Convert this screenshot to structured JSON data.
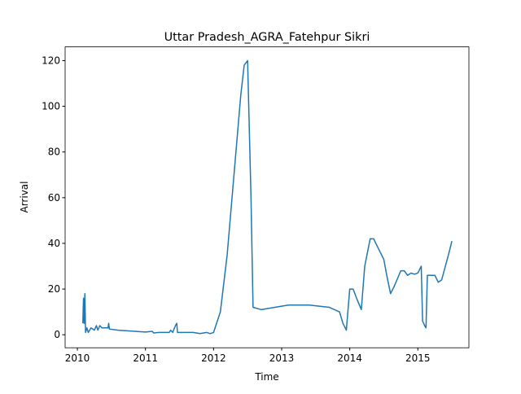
{
  "chart_data": {
    "type": "line",
    "title": "Uttar Pradesh_AGRA_Fatehpur Sikri",
    "x_label": "Time",
    "y_label": "Arrival",
    "x": [
      2010.08,
      2010.09,
      2010.1,
      2010.11,
      2010.12,
      2010.14,
      2010.16,
      2010.2,
      2010.25,
      2010.28,
      2010.3,
      2010.33,
      2010.36,
      2010.45,
      2010.46,
      2010.47,
      2010.6,
      2011.0,
      2011.1,
      2011.12,
      2011.2,
      2011.35,
      2011.37,
      2011.4,
      2011.44,
      2011.46,
      2011.47,
      2011.6,
      2011.7,
      2011.8,
      2011.9,
      2011.95,
      2012.0,
      2012.1,
      2012.2,
      2012.3,
      2012.4,
      2012.45,
      2012.5,
      2012.55,
      2012.58,
      2012.7,
      2012.9,
      2013.1,
      2013.4,
      2013.7,
      2013.85,
      2013.9,
      2013.95,
      2014.0,
      2014.05,
      2014.1,
      2014.17,
      2014.22,
      2014.3,
      2014.35,
      2014.45,
      2014.5,
      2014.55,
      2014.6,
      2014.65,
      2014.75,
      2014.8,
      2014.85,
      2014.9,
      2014.95,
      2015.0,
      2015.05,
      2015.07,
      2015.1,
      2015.12,
      2015.14,
      2015.25,
      2015.3,
      2015.35,
      2015.45,
      2015.5
    ],
    "series": [
      {
        "color": "#1f77b4",
        "values": [
          5,
          16,
          5,
          18,
          1,
          3,
          1,
          3,
          2,
          4,
          2,
          4,
          3,
          3,
          5,
          2.5,
          2,
          1.2,
          1.5,
          0.8,
          1,
          1,
          2,
          1,
          4,
          5,
          1,
          1,
          1,
          0.5,
          1,
          0.5,
          1,
          10,
          35,
          70,
          105,
          118,
          120,
          60,
          12,
          11,
          12,
          13,
          13,
          12,
          10,
          5,
          2,
          20,
          20,
          16,
          11,
          30,
          42,
          42,
          36,
          33,
          25,
          18,
          21,
          28,
          28,
          26,
          27,
          26.5,
          27,
          30,
          6,
          4,
          3,
          26,
          26,
          23,
          24,
          35,
          41
        ]
      }
    ],
    "xlim": [
      2009.82,
      2015.75
    ],
    "xticks": [
      2010,
      2011,
      2012,
      2013,
      2014,
      2015
    ],
    "ylim": [
      -5.7,
      126
    ],
    "yticks": [
      0,
      20,
      40,
      60,
      80,
      100,
      120
    ],
    "grid": false
  }
}
